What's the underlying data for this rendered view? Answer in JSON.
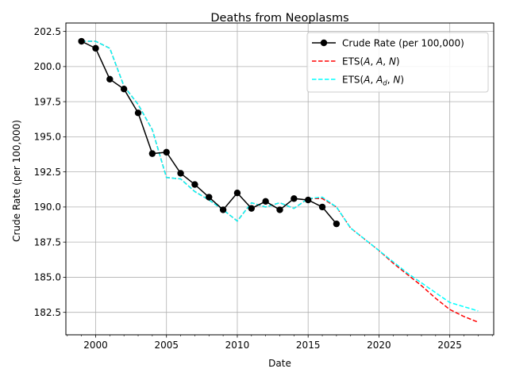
{
  "chart_data": {
    "type": "line",
    "title": "Deaths from Neoplasms",
    "xlabel": "Date",
    "ylabel": "Crude Rate (per 100,000)",
    "xlim": [
      1997.9,
      2028.1
    ],
    "ylim": [
      180.9,
      203.1
    ],
    "x_ticks": [
      2000,
      2005,
      2010,
      2015,
      2020,
      2025
    ],
    "y_ticks": [
      182.5,
      185.0,
      187.5,
      190.0,
      192.5,
      195.0,
      197.5,
      200.0,
      202.5
    ],
    "x_tick_labels": [
      "2000",
      "2005",
      "2010",
      "2015",
      "2020",
      "2025"
    ],
    "y_tick_labels": [
      "182.5",
      "185.0",
      "187.5",
      "190.0",
      "192.5",
      "195.0",
      "197.5",
      "200.0",
      "202.5"
    ],
    "grid": true,
    "legend_position": "top-right",
    "series": [
      {
        "name": "Crude Rate (per 100,000)",
        "color": "#000000",
        "style": "solid",
        "marker": "circle",
        "x": [
          1999,
          2000,
          2001,
          2002,
          2003,
          2004,
          2005,
          2006,
          2007,
          2008,
          2009,
          2010,
          2011,
          2012,
          2013,
          2014,
          2015,
          2016,
          2017
        ],
        "y": [
          201.8,
          201.3,
          199.1,
          198.4,
          196.7,
          193.8,
          193.9,
          192.4,
          191.6,
          190.7,
          189.8,
          191.0,
          189.9,
          190.4,
          189.8,
          190.6,
          190.5,
          190.0,
          188.8
        ]
      },
      {
        "name_parts": [
          "ETS(",
          "A",
          ", ",
          "A",
          ", ",
          "N",
          ")"
        ],
        "color": "#ff0000",
        "style": "dashed",
        "x": [
          1999,
          2000,
          2001,
          2002,
          2003,
          2004,
          2005,
          2006,
          2007,
          2008,
          2009,
          2010,
          2011,
          2012,
          2013,
          2014,
          2015,
          2016,
          2017,
          2018,
          2019,
          2020,
          2021,
          2022,
          2023,
          2024,
          2025,
          2026,
          2027
        ],
        "y": [
          201.8,
          201.8,
          201.3,
          198.6,
          197.3,
          195.5,
          192.1,
          192.0,
          191.1,
          190.5,
          189.8,
          189.0,
          190.3,
          190.0,
          190.3,
          189.9,
          190.6,
          190.6,
          190.0,
          188.5,
          187.7,
          186.9,
          186.0,
          185.2,
          184.4,
          183.5,
          182.7,
          182.2,
          181.8
        ]
      },
      {
        "name_parts": [
          "ETS(",
          "A",
          ", ",
          "A",
          "d",
          ", ",
          "N",
          ")"
        ],
        "color": "#00ffff",
        "style": "dashed",
        "x": [
          1999,
          2000,
          2001,
          2002,
          2003,
          2004,
          2005,
          2006,
          2007,
          2008,
          2009,
          2010,
          2011,
          2012,
          2013,
          2014,
          2015,
          2016,
          2017,
          2018,
          2019,
          2020,
          2021,
          2022,
          2023,
          2024,
          2025,
          2026,
          2027
        ],
        "y": [
          201.8,
          201.8,
          201.3,
          198.6,
          197.3,
          195.5,
          192.1,
          192.0,
          191.1,
          190.5,
          189.8,
          189.0,
          190.3,
          190.0,
          190.3,
          189.9,
          190.6,
          190.7,
          190.0,
          188.5,
          187.7,
          186.9,
          186.1,
          185.3,
          184.6,
          183.9,
          183.2,
          182.9,
          182.6
        ]
      }
    ]
  }
}
